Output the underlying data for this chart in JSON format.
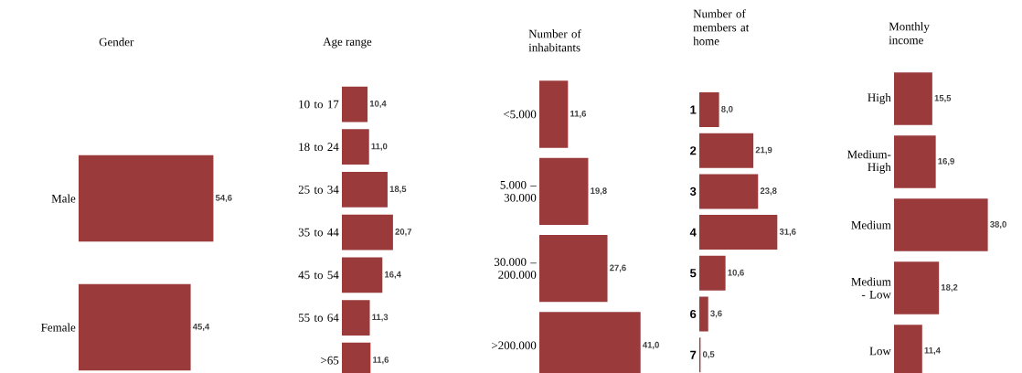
{
  "chart_data": [
    {
      "type": "bar",
      "orientation": "horizontal",
      "title": "Gender",
      "categories": [
        "Male",
        "Female"
      ],
      "values": [
        54.6,
        45.4
      ],
      "value_labels": [
        "54,6",
        "45,4"
      ],
      "color": "#9a3a3a"
    },
    {
      "type": "bar",
      "orientation": "horizontal",
      "title": "Age range",
      "categories": [
        "10 to 17",
        "18 to 24",
        "25 to 34",
        "35 to 44",
        "45 to 54",
        "55 to 64",
        ">65"
      ],
      "values": [
        10.4,
        11.0,
        18.5,
        20.7,
        16.4,
        11.3,
        11.6
      ],
      "value_labels": [
        "10,4",
        "11,0",
        "18,5",
        "20,7",
        "16,4",
        "11,3",
        "11,6"
      ],
      "color": "#9a3a3a"
    },
    {
      "type": "bar",
      "orientation": "horizontal",
      "title": "Number of inhabitants",
      "categories": [
        "<5.000",
        "5.000 – 30.000",
        "30.000 – 200.000",
        ">200.000"
      ],
      "values": [
        11.6,
        19.8,
        27.6,
        41.0
      ],
      "value_labels": [
        "11,6",
        "19,8",
        "27,6",
        "41,0"
      ],
      "color": "#9a3a3a"
    },
    {
      "type": "bar",
      "orientation": "horizontal",
      "title": "Number of members at home",
      "categories": [
        "1",
        "2",
        "3",
        "4",
        "5",
        "6",
        "7"
      ],
      "values": [
        8.0,
        21.9,
        23.8,
        31.6,
        10.6,
        3.6,
        0.5
      ],
      "value_labels": [
        "8,0",
        "21,9",
        "23,8",
        "31,6",
        "10,6",
        "3,6",
        "0,5"
      ],
      "color": "#9a3a3a"
    },
    {
      "type": "bar",
      "orientation": "horizontal",
      "title": "Monthly income",
      "categories": [
        "High",
        "Medium-High",
        "Medium",
        "Medium - Low",
        "Low"
      ],
      "values": [
        15.5,
        16.9,
        38.0,
        18.2,
        11.4
      ],
      "value_labels": [
        "15,5",
        "16,9",
        "38,0",
        "18,2",
        "11,4"
      ],
      "color": "#9a3a3a"
    }
  ]
}
